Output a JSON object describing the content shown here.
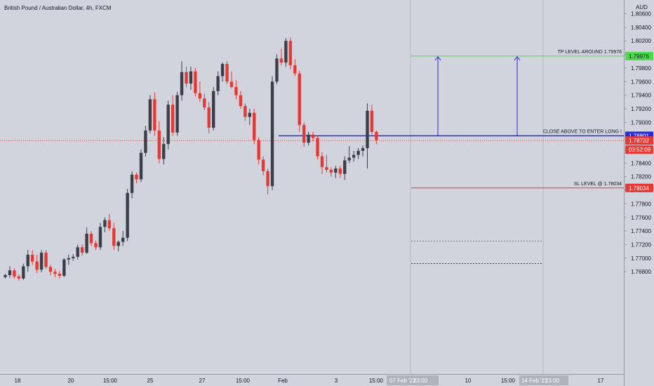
{
  "header": {
    "title": "British Pound / Australian Dollar, 4h, FXCM"
  },
  "price_scale": {
    "currency": "AUD"
  },
  "chart_data": {
    "type": "candlestick",
    "title": "British Pound / Australian Dollar, 4h, FXCM",
    "ylabel": "AUD",
    "ylim": [
      1.767,
      1.8085
    ],
    "y_ticks": [
      "1.80600",
      "1.80400",
      "1.80200",
      "1.80000",
      "1.79800",
      "1.79600",
      "1.79400",
      "1.79200",
      "1.79000",
      "1.78800",
      "1.78600",
      "1.78400",
      "1.78200",
      "1.78000",
      "1.77800",
      "1.77600",
      "1.77400",
      "1.77200",
      "1.77000",
      "1.76800"
    ],
    "x_ticks": [
      "18",
      "20",
      "15:00",
      "25",
      "27",
      "15:00",
      "Feb",
      "3",
      "15:00",
      "10",
      "15:00",
      "17"
    ],
    "x_range_labels": [
      "07 Feb '21",
      "23:00",
      "14 Feb '21",
      "23:00"
    ],
    "candles": [
      [
        1.7672,
        1.7677,
        1.767,
        1.7675
      ],
      [
        1.7675,
        1.7688,
        1.7671,
        1.7682
      ],
      [
        1.7682,
        1.7685,
        1.767,
        1.7673
      ],
      [
        1.7673,
        1.7676,
        1.7667,
        1.767
      ],
      [
        1.767,
        1.7692,
        1.7668,
        1.7688
      ],
      [
        1.7688,
        1.7712,
        1.768,
        1.7705
      ],
      [
        1.7705,
        1.7712,
        1.769,
        1.7695
      ],
      [
        1.7695,
        1.7705,
        1.7678,
        1.7683
      ],
      [
        1.7683,
        1.7712,
        1.7679,
        1.7708
      ],
      [
        1.7708,
        1.7712,
        1.7684,
        1.7687
      ],
      [
        1.7687,
        1.769,
        1.7675,
        1.768
      ],
      [
        1.768,
        1.7684,
        1.7672,
        1.7677
      ],
      [
        1.7677,
        1.7681,
        1.767,
        1.7674
      ],
      [
        1.7674,
        1.77,
        1.7672,
        1.7698
      ],
      [
        1.7698,
        1.7705,
        1.769,
        1.77
      ],
      [
        1.77,
        1.7706,
        1.7696,
        1.7702
      ],
      [
        1.7702,
        1.772,
        1.7698,
        1.7716
      ],
      [
        1.7716,
        1.772,
        1.7704,
        1.7708
      ],
      [
        1.7708,
        1.7745,
        1.7706,
        1.7736
      ],
      [
        1.7736,
        1.774,
        1.7718,
        1.7722
      ],
      [
        1.7722,
        1.7726,
        1.7712,
        1.7716
      ],
      [
        1.7716,
        1.7752,
        1.7712,
        1.7746
      ],
      [
        1.7746,
        1.776,
        1.7738,
        1.7756
      ],
      [
        1.7756,
        1.7765,
        1.774,
        1.7744
      ],
      [
        1.7744,
        1.7752,
        1.7712,
        1.7718
      ],
      [
        1.7718,
        1.7726,
        1.771,
        1.7724
      ],
      [
        1.7724,
        1.774,
        1.7718,
        1.773
      ],
      [
        1.773,
        1.7802,
        1.7725,
        1.7796
      ],
      [
        1.7796,
        1.7828,
        1.7788,
        1.7823
      ],
      [
        1.7823,
        1.7826,
        1.781,
        1.7816
      ],
      [
        1.7816,
        1.786,
        1.7812,
        1.7855
      ],
      [
        1.7855,
        1.7895,
        1.785,
        1.7888
      ],
      [
        1.7888,
        1.794,
        1.7884,
        1.7934
      ],
      [
        1.7934,
        1.7944,
        1.788,
        1.7888
      ],
      [
        1.7888,
        1.7902,
        1.784,
        1.7846
      ],
      [
        1.7846,
        1.7878,
        1.7838,
        1.7868
      ],
      [
        1.7868,
        1.7932,
        1.786,
        1.7926
      ],
      [
        1.7926,
        1.794,
        1.788,
        1.7885
      ],
      [
        1.7885,
        1.7945,
        1.788,
        1.794
      ],
      [
        1.794,
        1.799,
        1.7932,
        1.7974
      ],
      [
        1.7974,
        1.7982,
        1.7952,
        1.7957
      ],
      [
        1.7957,
        1.7982,
        1.7948,
        1.7975
      ],
      [
        1.7975,
        1.798,
        1.7938,
        1.7943
      ],
      [
        1.7943,
        1.796,
        1.793,
        1.7935
      ],
      [
        1.7935,
        1.7942,
        1.7918,
        1.7922
      ],
      [
        1.7922,
        1.793,
        1.7884,
        1.7892
      ],
      [
        1.7892,
        1.7952,
        1.7888,
        1.7946
      ],
      [
        1.7946,
        1.7975,
        1.794,
        1.7968
      ],
      [
        1.7968,
        1.7988,
        1.796,
        1.7986
      ],
      [
        1.7986,
        1.799,
        1.7956,
        1.796
      ],
      [
        1.796,
        1.7975,
        1.795,
        1.7952
      ],
      [
        1.7952,
        1.7962,
        1.7934,
        1.794
      ],
      [
        1.794,
        1.7946,
        1.792,
        1.7924
      ],
      [
        1.7924,
        1.7928,
        1.7902,
        1.7908
      ],
      [
        1.7908,
        1.792,
        1.7896,
        1.7914
      ],
      [
        1.7914,
        1.792,
        1.7868,
        1.7874
      ],
      [
        1.7874,
        1.7878,
        1.7838,
        1.7845
      ],
      [
        1.7845,
        1.785,
        1.7822,
        1.7828
      ],
      [
        1.7828,
        1.7832,
        1.7794,
        1.7806
      ],
      [
        1.7806,
        1.7968,
        1.78,
        1.796
      ],
      [
        1.796,
        1.8,
        1.7956,
        1.7994
      ],
      [
        1.7994,
        1.8008,
        1.7984,
        1.7988
      ],
      [
        1.7988,
        1.8024,
        1.7982,
        1.802
      ],
      [
        1.802,
        1.8025,
        1.7978,
        1.7984
      ],
      [
        1.7984,
        1.7993,
        1.7968,
        1.7972
      ],
      [
        1.7972,
        1.7976,
        1.7886,
        1.7896
      ],
      [
        1.7896,
        1.79,
        1.7864,
        1.787
      ],
      [
        1.787,
        1.7886,
        1.7866,
        1.7882
      ],
      [
        1.7882,
        1.7886,
        1.7872,
        1.7877
      ],
      [
        1.7877,
        1.788,
        1.7845,
        1.785
      ],
      [
        1.785,
        1.7856,
        1.7824,
        1.7834
      ],
      [
        1.7834,
        1.7852,
        1.7826,
        1.783
      ],
      [
        1.783,
        1.7834,
        1.782,
        1.7826
      ],
      [
        1.7826,
        1.7836,
        1.7818,
        1.7832
      ],
      [
        1.7832,
        1.7836,
        1.7818,
        1.7824
      ],
      [
        1.7824,
        1.785,
        1.7815,
        1.7844
      ],
      [
        1.7844,
        1.7865,
        1.784,
        1.7848
      ],
      [
        1.7848,
        1.7858,
        1.7842,
        1.7852
      ],
      [
        1.7852,
        1.7862,
        1.7846,
        1.7858
      ],
      [
        1.7858,
        1.7866,
        1.785,
        1.7862
      ],
      [
        1.7862,
        1.7928,
        1.7832,
        1.7917
      ],
      [
        1.7917,
        1.7926,
        1.7882,
        1.7886
      ],
      [
        1.7886,
        1.7888,
        1.7868,
        1.7874
      ]
    ],
    "lines": {
      "entry": {
        "price": 1.78801,
        "label": "CLOSE ABOVE TO ENTER LONG !",
        "color": "#2a2adb"
      },
      "tp": {
        "price": 1.79976,
        "label": "TP LEVEL AROUND 1.79976",
        "color": "#4cd94c"
      },
      "sl": {
        "price": 1.78034,
        "label": "SL LEVEL @ 1.78034",
        "color": "#e53935"
      }
    },
    "price_badges": [
      {
        "text": "1.79976",
        "price": 1.79976,
        "bg": "#4cd94c",
        "fg": "#131722"
      },
      {
        "text": "1.78801",
        "price": 1.78801,
        "bg": "#2a2adb",
        "fg": "#ffffff"
      },
      {
        "text": "1.78732",
        "price": 1.78732,
        "bg": "#e53935",
        "fg": "#ffffff"
      },
      {
        "text": "03:52:09",
        "price": 1.7858,
        "bg": "#e53935",
        "fg": "#ffffff"
      },
      {
        "text": "1.78034",
        "price": 1.78034,
        "bg": "#e53935",
        "fg": "#ffffff"
      }
    ],
    "current_price": 1.78732,
    "colors": {
      "up": "#3a3f4a",
      "down": "#e53935",
      "background": "#d1d4dc"
    }
  }
}
